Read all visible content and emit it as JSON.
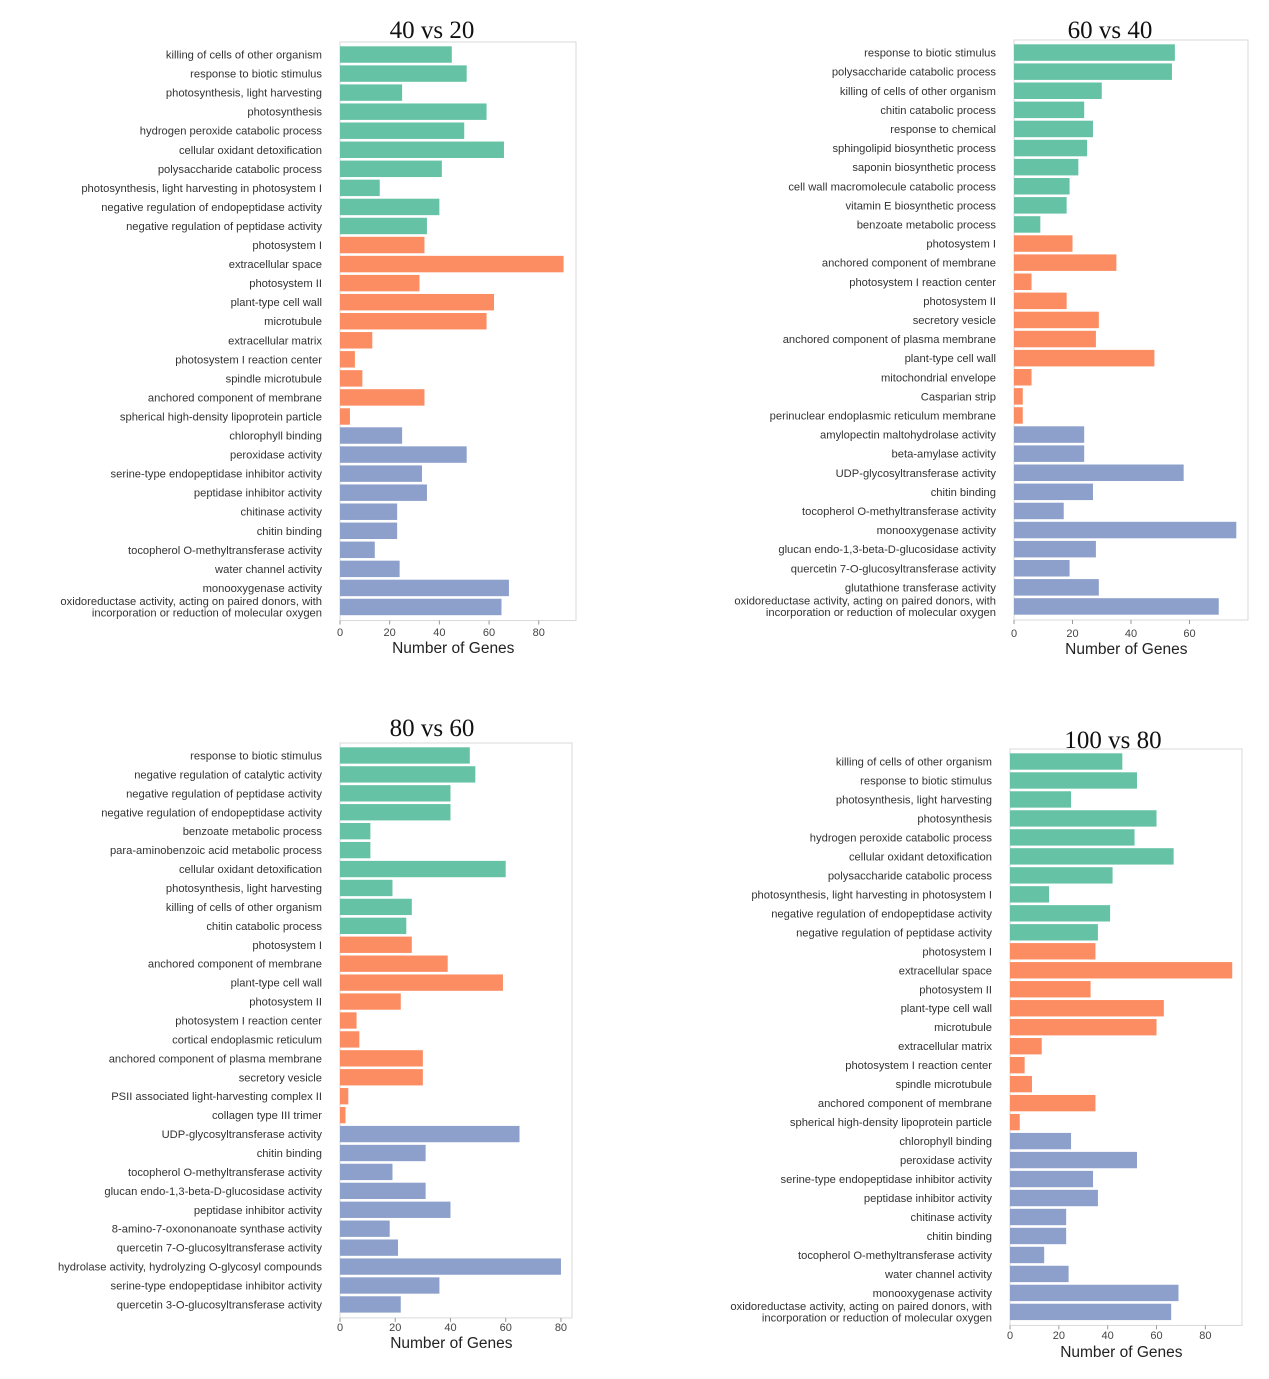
{
  "colors": {
    "BP": "#66c2a5",
    "CC": "#fc8d62",
    "MF": "#8da0cb"
  },
  "chart_data": [
    {
      "type": "bar",
      "orientation": "horizontal",
      "title": "40 vs 20",
      "xlabel": "Number of Genes",
      "xlim": [
        0,
        95
      ],
      "xticks": [
        0,
        20,
        40,
        60,
        80
      ],
      "bars": [
        {
          "label": "killing of cells of other organism",
          "value": 45,
          "group": "BP"
        },
        {
          "label": "response to biotic stimulus",
          "value": 51,
          "group": "BP"
        },
        {
          "label": "photosynthesis, light harvesting",
          "value": 25,
          "group": "BP"
        },
        {
          "label": "photosynthesis",
          "value": 59,
          "group": "BP"
        },
        {
          "label": "hydrogen peroxide catabolic process",
          "value": 50,
          "group": "BP"
        },
        {
          "label": "cellular oxidant detoxification",
          "value": 66,
          "group": "BP"
        },
        {
          "label": "polysaccharide catabolic process",
          "value": 41,
          "group": "BP"
        },
        {
          "label": "photosynthesis, light harvesting in photosystem I",
          "value": 16,
          "group": "BP"
        },
        {
          "label": "negative regulation of endopeptidase activity",
          "value": 40,
          "group": "BP"
        },
        {
          "label": "negative regulation of peptidase activity",
          "value": 35,
          "group": "BP"
        },
        {
          "label": "photosystem I",
          "value": 34,
          "group": "CC"
        },
        {
          "label": "extracellular space",
          "value": 90,
          "group": "CC"
        },
        {
          "label": "photosystem II",
          "value": 32,
          "group": "CC"
        },
        {
          "label": "plant-type cell wall",
          "value": 62,
          "group": "CC"
        },
        {
          "label": "microtubule",
          "value": 59,
          "group": "CC"
        },
        {
          "label": "extracellular matrix",
          "value": 13,
          "group": "CC"
        },
        {
          "label": "photosystem I reaction center",
          "value": 6,
          "group": "CC"
        },
        {
          "label": "spindle microtubule",
          "value": 9,
          "group": "CC"
        },
        {
          "label": "anchored component of membrane",
          "value": 34,
          "group": "CC"
        },
        {
          "label": "spherical high-density lipoprotein particle",
          "value": 4,
          "group": "CC"
        },
        {
          "label": "chlorophyll binding",
          "value": 25,
          "group": "MF"
        },
        {
          "label": "peroxidase activity",
          "value": 51,
          "group": "MF"
        },
        {
          "label": "serine-type endopeptidase inhibitor activity",
          "value": 33,
          "group": "MF"
        },
        {
          "label": "peptidase inhibitor activity",
          "value": 35,
          "group": "MF"
        },
        {
          "label": "chitinase activity",
          "value": 23,
          "group": "MF"
        },
        {
          "label": "chitin binding",
          "value": 23,
          "group": "MF"
        },
        {
          "label": "tocopherol O-methyltransferase activity",
          "value": 14,
          "group": "MF"
        },
        {
          "label": "water channel activity",
          "value": 24,
          "group": "MF"
        },
        {
          "label": "monooxygenase activity",
          "value": 68,
          "group": "MF"
        },
        {
          "label": "oxidoreductase activity, acting on paired donors, with\nincorporation or reduction of molecular oxygen",
          "value": 65,
          "group": "MF"
        }
      ]
    },
    {
      "type": "bar",
      "orientation": "horizontal",
      "title": "60 vs 40",
      "xlabel": "Number of Genes",
      "xlim": [
        0,
        80
      ],
      "xticks": [
        0,
        20,
        40,
        60
      ],
      "bars": [
        {
          "label": "response to biotic stimulus",
          "value": 55,
          "group": "BP"
        },
        {
          "label": "polysaccharide catabolic process",
          "value": 54,
          "group": "BP"
        },
        {
          "label": "killing of cells of other organism",
          "value": 30,
          "group": "BP"
        },
        {
          "label": "chitin catabolic process",
          "value": 24,
          "group": "BP"
        },
        {
          "label": "response to chemical",
          "value": 27,
          "group": "BP"
        },
        {
          "label": "sphingolipid biosynthetic process",
          "value": 25,
          "group": "BP"
        },
        {
          "label": "saponin biosynthetic process",
          "value": 22,
          "group": "BP"
        },
        {
          "label": "cell wall macromolecule catabolic process",
          "value": 19,
          "group": "BP"
        },
        {
          "label": "vitamin E biosynthetic process",
          "value": 18,
          "group": "BP"
        },
        {
          "label": "benzoate metabolic process",
          "value": 9,
          "group": "BP"
        },
        {
          "label": "photosystem I",
          "value": 20,
          "group": "CC"
        },
        {
          "label": "anchored component of membrane",
          "value": 35,
          "group": "CC"
        },
        {
          "label": "photosystem I reaction center",
          "value": 6,
          "group": "CC"
        },
        {
          "label": "photosystem II",
          "value": 18,
          "group": "CC"
        },
        {
          "label": "secretory vesicle",
          "value": 29,
          "group": "CC"
        },
        {
          "label": "anchored component of plasma membrane",
          "value": 28,
          "group": "CC"
        },
        {
          "label": "plant-type cell wall",
          "value": 48,
          "group": "CC"
        },
        {
          "label": "mitochondrial envelope",
          "value": 6,
          "group": "CC"
        },
        {
          "label": "Casparian strip",
          "value": 3,
          "group": "CC"
        },
        {
          "label": "perinuclear endoplasmic reticulum membrane",
          "value": 3,
          "group": "CC"
        },
        {
          "label": "amylopectin maltohydrolase activity",
          "value": 24,
          "group": "MF"
        },
        {
          "label": "beta-amylase activity",
          "value": 24,
          "group": "MF"
        },
        {
          "label": "UDP-glycosyltransferase activity",
          "value": 58,
          "group": "MF"
        },
        {
          "label": "chitin binding",
          "value": 27,
          "group": "MF"
        },
        {
          "label": "tocopherol O-methyltransferase activity",
          "value": 17,
          "group": "MF"
        },
        {
          "label": "monooxygenase activity",
          "value": 76,
          "group": "MF"
        },
        {
          "label": "glucan endo-1,3-beta-D-glucosidase activity",
          "value": 28,
          "group": "MF"
        },
        {
          "label": "quercetin 7-O-glucosyltransferase activity",
          "value": 19,
          "group": "MF"
        },
        {
          "label": "glutathione transferase activity",
          "value": 29,
          "group": "MF"
        },
        {
          "label": "oxidoreductase activity, acting on paired donors, with\nincorporation or reduction of molecular oxygen",
          "value": 70,
          "group": "MF"
        }
      ]
    },
    {
      "type": "bar",
      "orientation": "horizontal",
      "title": "80 vs 60",
      "xlabel": "Number of Genes",
      "xlim": [
        0,
        84
      ],
      "xticks": [
        0,
        20,
        40,
        60,
        80
      ],
      "bars": [
        {
          "label": "response to biotic stimulus",
          "value": 47,
          "group": "BP"
        },
        {
          "label": "negative regulation of catalytic activity",
          "value": 49,
          "group": "BP"
        },
        {
          "label": "negative regulation of peptidase activity",
          "value": 40,
          "group": "BP"
        },
        {
          "label": "negative regulation of endopeptidase activity",
          "value": 40,
          "group": "BP"
        },
        {
          "label": "benzoate metabolic process",
          "value": 11,
          "group": "BP"
        },
        {
          "label": "para-aminobenzoic acid metabolic process",
          "value": 11,
          "group": "BP"
        },
        {
          "label": "cellular oxidant detoxification",
          "value": 60,
          "group": "BP"
        },
        {
          "label": "photosynthesis, light harvesting",
          "value": 19,
          "group": "BP"
        },
        {
          "label": "killing of cells of other organism",
          "value": 26,
          "group": "BP"
        },
        {
          "label": "chitin catabolic process",
          "value": 24,
          "group": "BP"
        },
        {
          "label": "photosystem I",
          "value": 26,
          "group": "CC"
        },
        {
          "label": "anchored component of membrane",
          "value": 39,
          "group": "CC"
        },
        {
          "label": "plant-type cell wall",
          "value": 59,
          "group": "CC"
        },
        {
          "label": "photosystem II",
          "value": 22,
          "group": "CC"
        },
        {
          "label": "photosystem I reaction center",
          "value": 6,
          "group": "CC"
        },
        {
          "label": "cortical endoplasmic reticulum",
          "value": 7,
          "group": "CC"
        },
        {
          "label": "anchored component of plasma membrane",
          "value": 30,
          "group": "CC"
        },
        {
          "label": "secretory vesicle",
          "value": 30,
          "group": "CC"
        },
        {
          "label": "PSII associated light-harvesting complex II",
          "value": 3,
          "group": "CC"
        },
        {
          "label": "collagen type III trimer",
          "value": 2,
          "group": "CC"
        },
        {
          "label": "UDP-glycosyltransferase activity",
          "value": 65,
          "group": "MF"
        },
        {
          "label": "chitin binding",
          "value": 31,
          "group": "MF"
        },
        {
          "label": "tocopherol O-methyltransferase activity",
          "value": 19,
          "group": "MF"
        },
        {
          "label": "glucan endo-1,3-beta-D-glucosidase activity",
          "value": 31,
          "group": "MF"
        },
        {
          "label": "peptidase inhibitor activity",
          "value": 40,
          "group": "MF"
        },
        {
          "label": "8-amino-7-oxononanoate synthase activity",
          "value": 18,
          "group": "MF"
        },
        {
          "label": "quercetin 7-O-glucosyltransferase activity",
          "value": 21,
          "group": "MF"
        },
        {
          "label": "hydrolase activity, hydrolyzing O-glycosyl compounds",
          "value": 80,
          "group": "MF"
        },
        {
          "label": "serine-type endopeptidase inhibitor activity",
          "value": 36,
          "group": "MF"
        },
        {
          "label": "quercetin 3-O-glucosyltransferase activity",
          "value": 22,
          "group": "MF"
        }
      ]
    },
    {
      "type": "bar",
      "orientation": "horizontal",
      "title": "100 vs 80",
      "xlabel": "Number of Genes",
      "xlim": [
        0,
        95
      ],
      "xticks": [
        0,
        20,
        40,
        60,
        80
      ],
      "bars": [
        {
          "label": "killing of cells of other organism",
          "value": 46,
          "group": "BP"
        },
        {
          "label": "response to biotic stimulus",
          "value": 52,
          "group": "BP"
        },
        {
          "label": "photosynthesis, light harvesting",
          "value": 25,
          "group": "BP"
        },
        {
          "label": "photosynthesis",
          "value": 60,
          "group": "BP"
        },
        {
          "label": "hydrogen peroxide catabolic process",
          "value": 51,
          "group": "BP"
        },
        {
          "label": "cellular oxidant detoxification",
          "value": 67,
          "group": "BP"
        },
        {
          "label": "polysaccharide catabolic process",
          "value": 42,
          "group": "BP"
        },
        {
          "label": "photosynthesis, light harvesting in photosystem I",
          "value": 16,
          "group": "BP"
        },
        {
          "label": "negative regulation of endopeptidase activity",
          "value": 41,
          "group": "BP"
        },
        {
          "label": "negative regulation of peptidase activity",
          "value": 36,
          "group": "BP"
        },
        {
          "label": "photosystem I",
          "value": 35,
          "group": "CC"
        },
        {
          "label": "extracellular space",
          "value": 91,
          "group": "CC"
        },
        {
          "label": "photosystem II",
          "value": 33,
          "group": "CC"
        },
        {
          "label": "plant-type cell wall",
          "value": 63,
          "group": "CC"
        },
        {
          "label": "microtubule",
          "value": 60,
          "group": "CC"
        },
        {
          "label": "extracellular matrix",
          "value": 13,
          "group": "CC"
        },
        {
          "label": "photosystem I reaction center",
          "value": 6,
          "group": "CC"
        },
        {
          "label": "spindle microtubule",
          "value": 9,
          "group": "CC"
        },
        {
          "label": "anchored component of membrane",
          "value": 35,
          "group": "CC"
        },
        {
          "label": "spherical high-density lipoprotein particle",
          "value": 4,
          "group": "CC"
        },
        {
          "label": "chlorophyll binding",
          "value": 25,
          "group": "MF"
        },
        {
          "label": "peroxidase activity",
          "value": 52,
          "group": "MF"
        },
        {
          "label": "serine-type endopeptidase inhibitor activity",
          "value": 34,
          "group": "MF"
        },
        {
          "label": "peptidase inhibitor activity",
          "value": 36,
          "group": "MF"
        },
        {
          "label": "chitinase activity",
          "value": 23,
          "group": "MF"
        },
        {
          "label": "chitin binding",
          "value": 23,
          "group": "MF"
        },
        {
          "label": "tocopherol O-methyltransferase activity",
          "value": 14,
          "group": "MF"
        },
        {
          "label": "water channel activity",
          "value": 24,
          "group": "MF"
        },
        {
          "label": "monooxygenase activity",
          "value": 69,
          "group": "MF"
        },
        {
          "label": "oxidoreductase activity, acting on paired donors, with\nincorporation or reduction of molecular oxygen",
          "value": 66,
          "group": "MF"
        }
      ]
    }
  ]
}
